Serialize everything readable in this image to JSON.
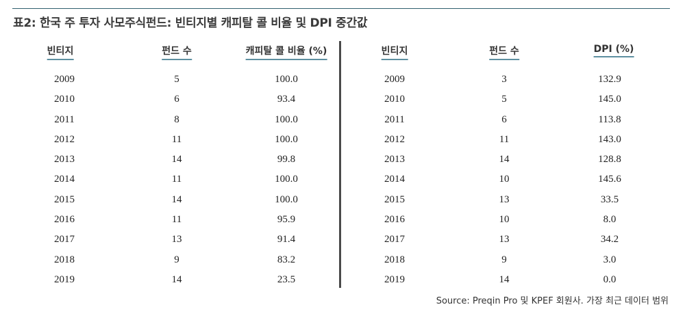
{
  "title": "표2: 한국 주 투자 사모주식펀드: 빈티지별 캐피탈 콜 비율 및 DPI 중간값",
  "left_table": {
    "headers": [
      "빈티지",
      "펀드 수",
      "캐피탈 콜 비율 (%)"
    ],
    "rows": [
      [
        "2009",
        "5",
        "100.0"
      ],
      [
        "2010",
        "6",
        "93.4"
      ],
      [
        "2011",
        "8",
        "100.0"
      ],
      [
        "2012",
        "11",
        "100.0"
      ],
      [
        "2013",
        "14",
        "99.8"
      ],
      [
        "2014",
        "11",
        "100.0"
      ],
      [
        "2015",
        "14",
        "100.0"
      ],
      [
        "2016",
        "11",
        "95.9"
      ],
      [
        "2017",
        "13",
        "91.4"
      ],
      [
        "2018",
        "9",
        "83.2"
      ],
      [
        "2019",
        "14",
        "23.5"
      ]
    ]
  },
  "right_table": {
    "headers": [
      "빈티지",
      "펀드 수",
      "DPI (%)"
    ],
    "rows": [
      [
        "2009",
        "3",
        "132.9"
      ],
      [
        "2010",
        "5",
        "145.0"
      ],
      [
        "2011",
        "6",
        "113.8"
      ],
      [
        "2012",
        "11",
        "143.0"
      ],
      [
        "2013",
        "14",
        "128.8"
      ],
      [
        "2014",
        "10",
        "145.6"
      ],
      [
        "2015",
        "13",
        "33.5"
      ],
      [
        "2016",
        "10",
        "8.0"
      ],
      [
        "2017",
        "13",
        "34.2"
      ],
      [
        "2018",
        "9",
        "3.0"
      ],
      [
        "2019",
        "14",
        "0.0"
      ]
    ]
  },
  "source": "Source: Preqin Pro 및 KPEF 회원사. 가장 최근 데이터 범위",
  "colors": {
    "rule": "#2f5f6e",
    "header_underline": "#5d8fa0",
    "divider": "#4a4a4a"
  }
}
